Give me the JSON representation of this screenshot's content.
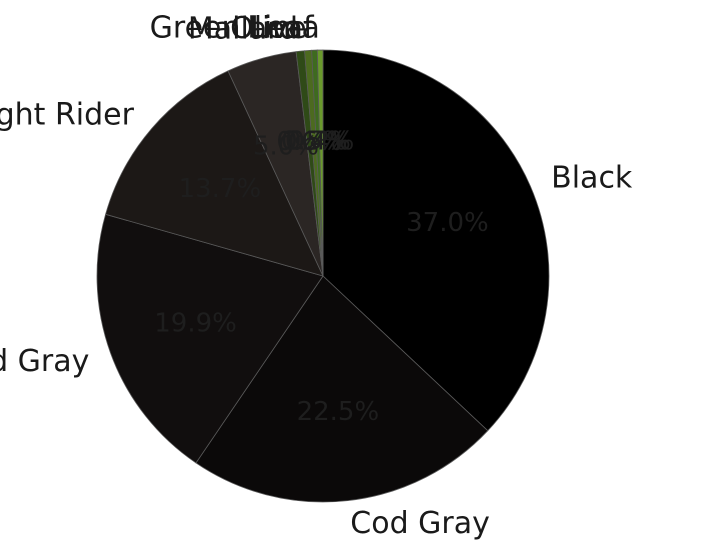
{
  "chart_data": {
    "type": "pie",
    "slices": [
      {
        "label": "Black",
        "value": 37.0,
        "pct_label": "37.0%",
        "color": "#000000"
      },
      {
        "label": "Cod Gray",
        "value": 22.5,
        "pct_label": "22.5%",
        "color": "#0b0909"
      },
      {
        "label": "Cod Gray",
        "value": 19.9,
        "pct_label": "19.9%",
        "color": "#110e0e"
      },
      {
        "label": "Night Rider",
        "value": 13.7,
        "pct_label": "13.7%",
        "color": "#1c1816"
      },
      {
        "label": "",
        "value": 5.0,
        "pct_label": "5.0%",
        "color": "#2b2624"
      },
      {
        "label": "Mallard",
        "value": 0.6,
        "pct_label": "0.6%",
        "color": "#2f4a17"
      },
      {
        "label": "Olive",
        "value": 0.5,
        "pct_label": "0.5%",
        "color": "#4c6a1f"
      },
      {
        "label": "Green Leaf",
        "value": 0.4,
        "pct_label": "0.4%",
        "color": "#3e6b1e"
      },
      {
        "label": "Lima",
        "value": 0.4,
        "pct_label": "0.4%",
        "color": "#6a9a2c"
      }
    ],
    "start_angle": 90,
    "direction": "clockwise"
  }
}
